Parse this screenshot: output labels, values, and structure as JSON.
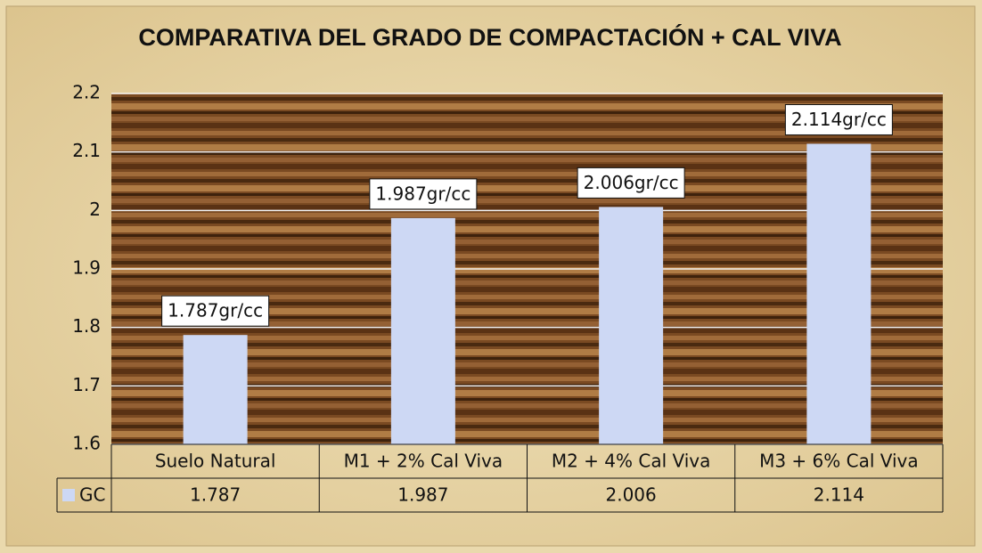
{
  "chart_data": {
    "type": "bar",
    "title": "COMPARATIVA DEL GRADO DE COMPACTACIÓN + CAL VIVA",
    "categories": [
      "Suelo Natural",
      "M1 + 2% Cal Viva",
      "M2 + 4% Cal Viva",
      "M3 + 6% Cal Viva"
    ],
    "series": [
      {
        "name": "GC",
        "color": "#cdd8f4",
        "values": [
          1.787,
          1.987,
          2.006,
          2.114
        ],
        "value_labels": [
          "1.787gr/cc",
          "1.987gr/cc",
          "2.006gr/cc",
          "2.114gr/cc"
        ]
      }
    ],
    "ylim": [
      1.6,
      2.2
    ],
    "yticks": [
      1.6,
      1.7,
      1.8,
      1.9,
      2,
      2.1,
      2.2
    ],
    "grid": true,
    "data_table": true
  }
}
